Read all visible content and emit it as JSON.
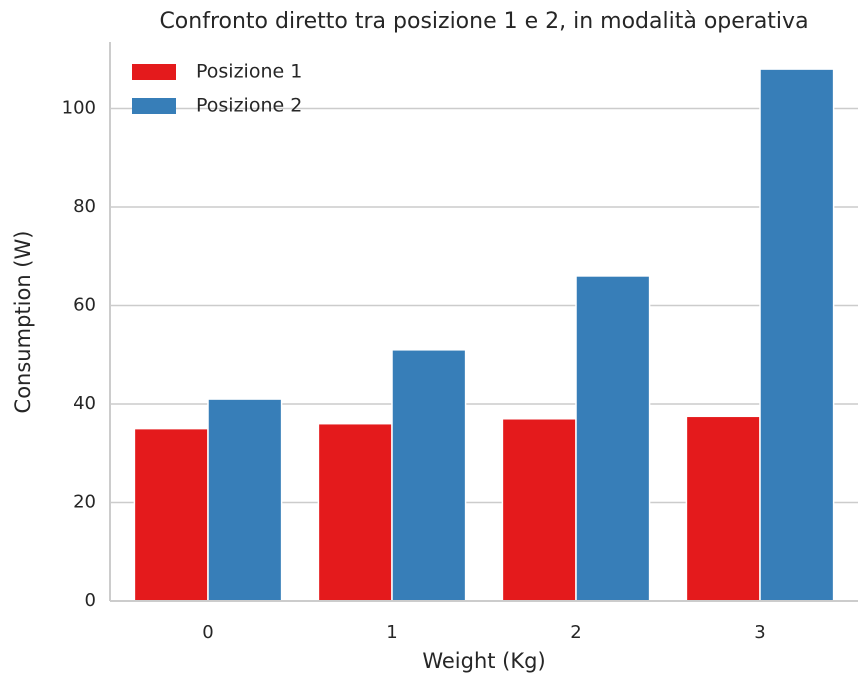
{
  "chart_data": {
    "type": "bar",
    "title": "Confronto diretto tra posizione 1 e 2, in modalità operativa",
    "xlabel": "Weight (Kg)",
    "ylabel": "Consumption (W)",
    "categories": [
      "0",
      "1",
      "2",
      "3"
    ],
    "series": [
      {
        "name": "Posizione 1",
        "color": "#e41a1c",
        "values": [
          35,
          36,
          37,
          37.5
        ]
      },
      {
        "name": "Posizione 2",
        "color": "#377eb8",
        "values": [
          41,
          51,
          66,
          108
        ]
      }
    ],
    "ylim": [
      0,
      113.5
    ],
    "yticks": [
      0,
      20,
      40,
      60,
      80,
      100
    ],
    "grid": true,
    "legend": "upper left"
  }
}
